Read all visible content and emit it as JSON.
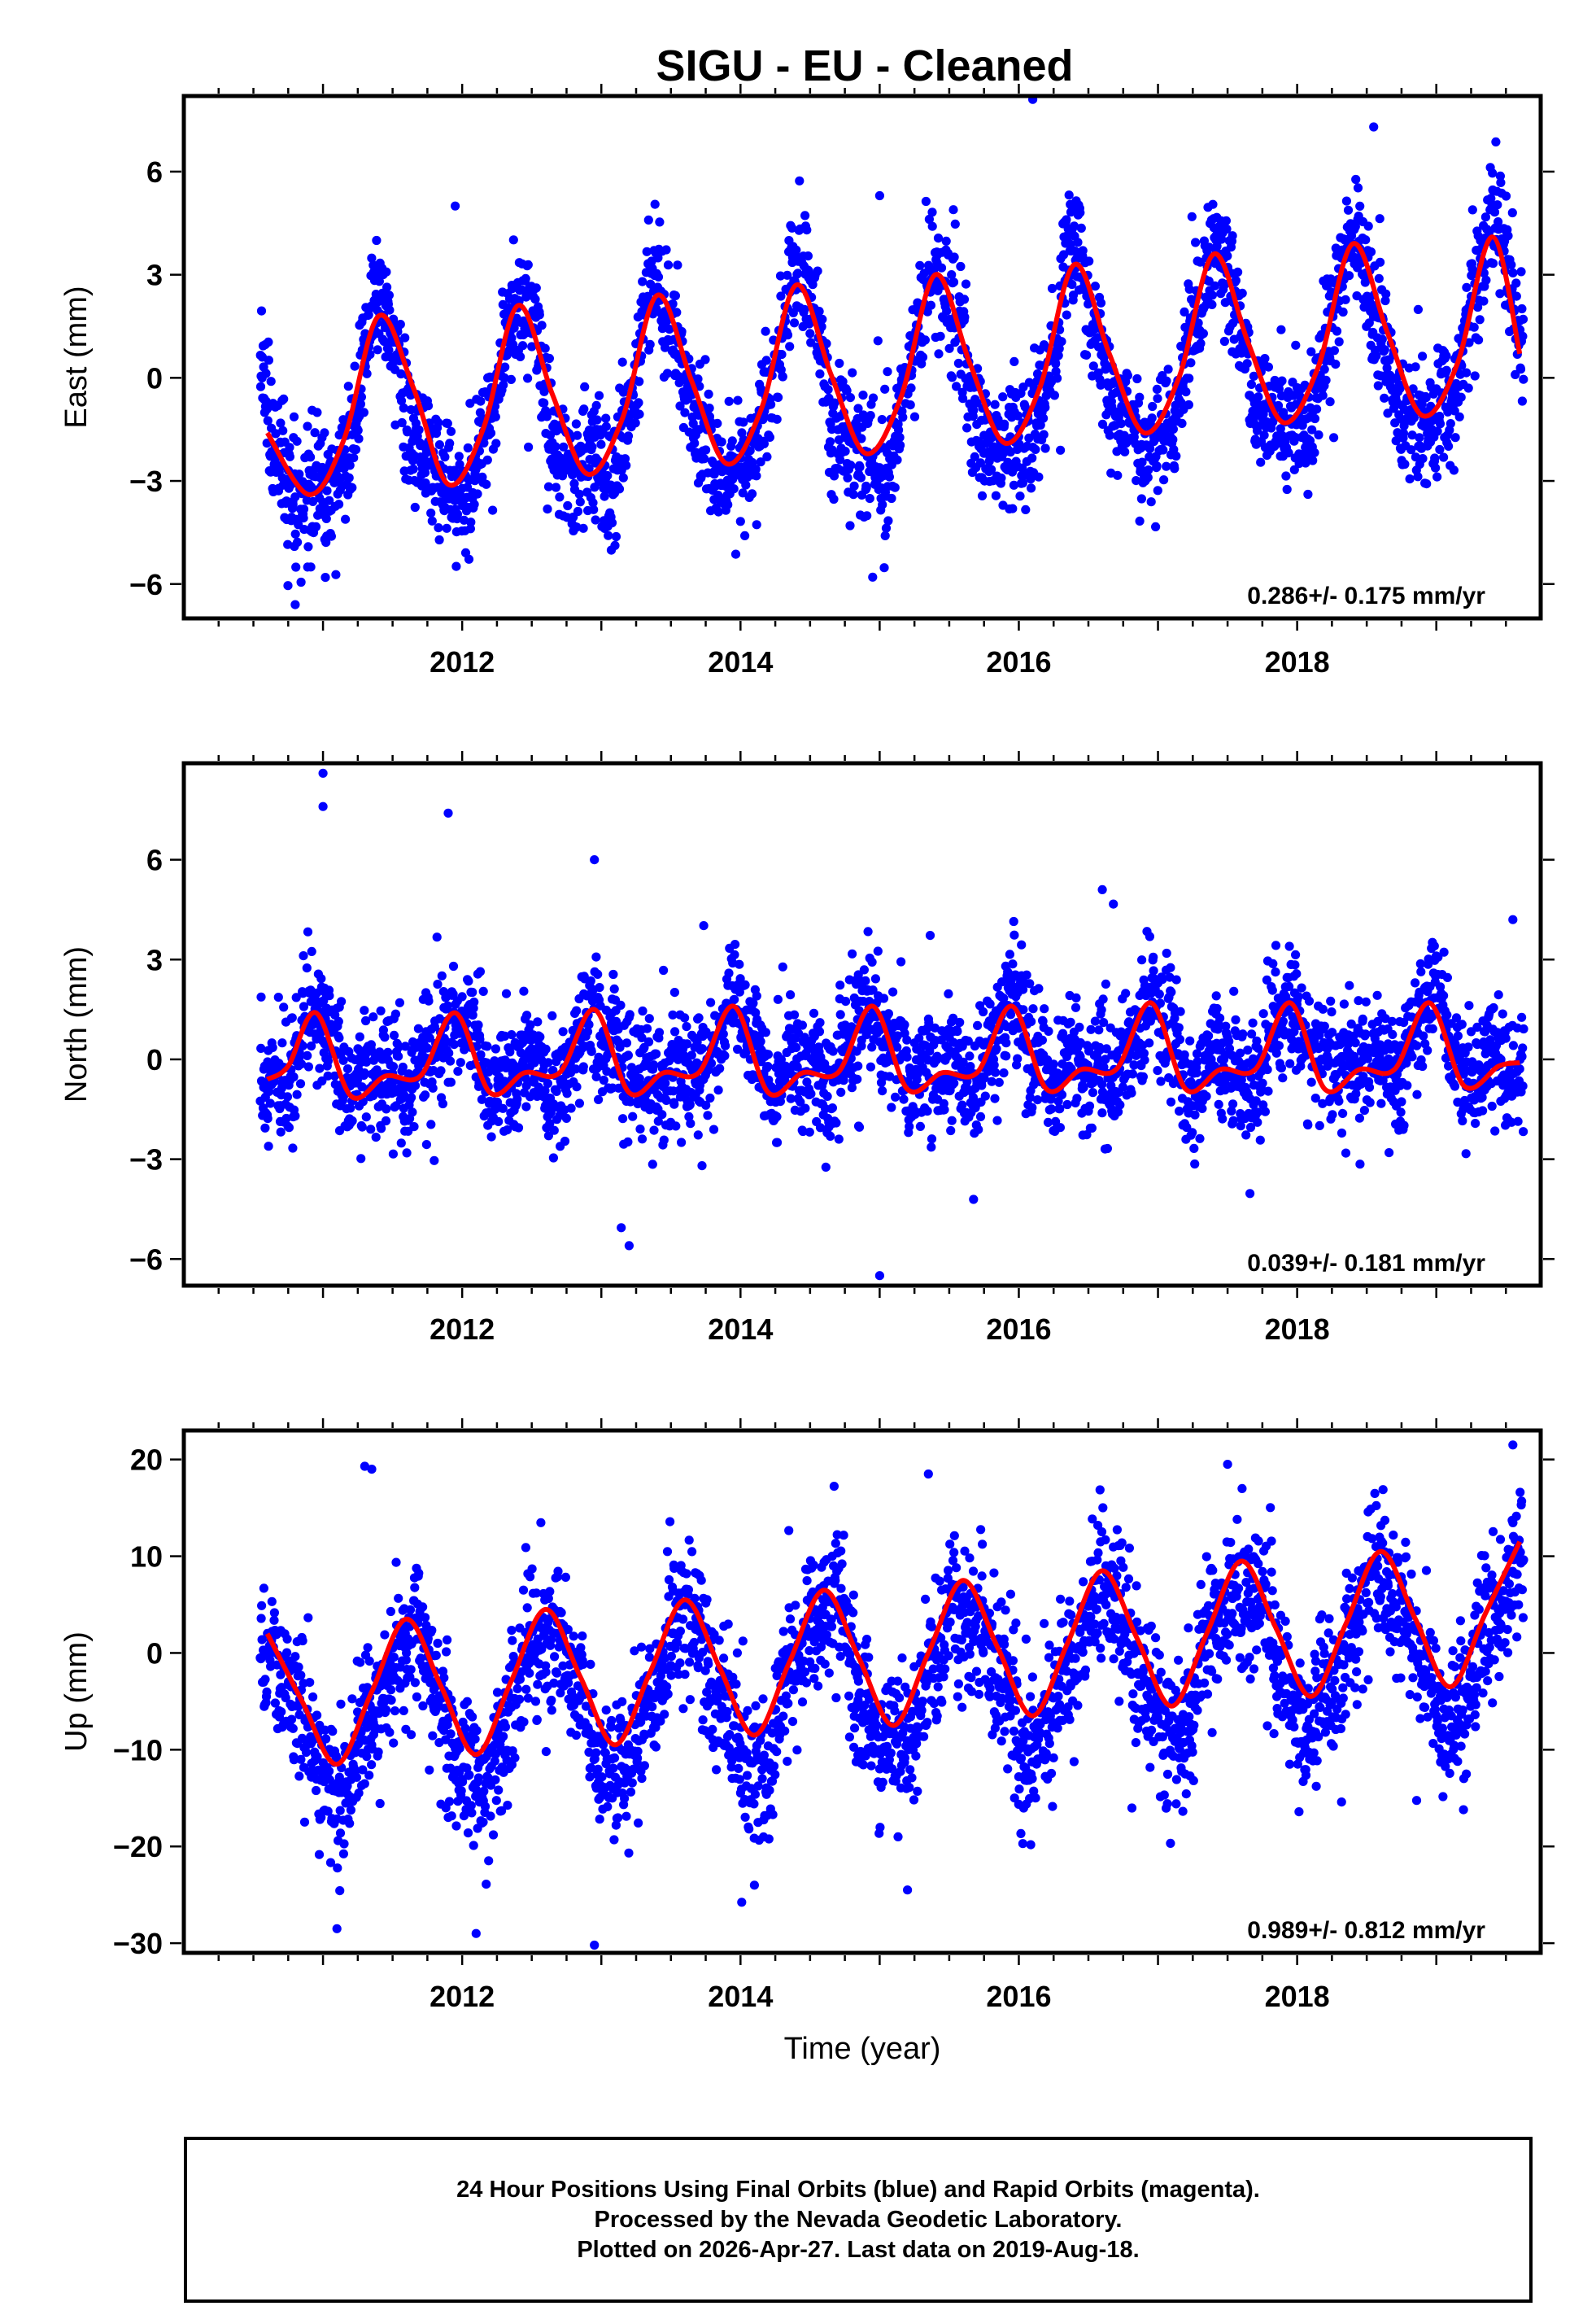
{
  "title": "SIGU  - EU - Cleaned",
  "colors": {
    "data_points": "#0000ff",
    "fit_line": "#ff0000",
    "frame": "#000000"
  },
  "footer": {
    "line1": "24 Hour Positions Using Final Orbits (blue) and Rapid Orbits (magenta).",
    "line2": "Processed by the Nevada Geodetic Laboratory.",
    "line3": "Plotted on 2026-Apr-27. Last data on 2019-Aug-18."
  },
  "chart_data": [
    {
      "type": "scatter",
      "title": "SIGU  - EU - Cleaned",
      "xlabel": "",
      "ylabel": "East (mm)",
      "xlim": [
        2010.0,
        2019.75
      ],
      "ylim": [
        -7.0,
        8.2
      ],
      "xticks": [
        2012,
        2014,
        2016,
        2018
      ],
      "xtick_labels": [
        "2012",
        "2014",
        "2016",
        "2018"
      ],
      "yticks": [
        -6,
        -3,
        0,
        3,
        6
      ],
      "ytick_labels": [
        "−6",
        "−3",
        "0",
        "3",
        "6"
      ],
      "rate_annotation": "0.286+/- 0.175 mm/yr",
      "data_start": 2010.55,
      "data_end": 2019.63,
      "series": [
        {
          "name": "24 hour positions (final orbits)",
          "color": "#0000ff",
          "model": {
            "offset": -0.3,
            "trend": 0.286,
            "annual_amplitude": 2.6,
            "annual_peak": 0.42,
            "semiannual_amplitude": 0.7,
            "semiannual_peak": 0.4,
            "scatter_sd": 1.05
          },
          "extreme_points": [
            [
              2011.95,
              5.0
            ],
            [
              2016.1,
              8.1
            ],
            [
              2015.0,
              5.3
            ],
            [
              2018.55,
              7.3
            ],
            [
              2010.8,
              -6.6
            ],
            [
              2014.95,
              -5.8
            ]
          ]
        },
        {
          "name": "Seasonal model fit",
          "color": "#ff0000",
          "x": [
            2010.6,
            2010.9,
            2011.15,
            2011.4,
            2011.65,
            2011.9,
            2012.15,
            2012.4,
            2012.65,
            2012.9,
            2013.15,
            2013.4,
            2013.65,
            2013.9,
            2014.15,
            2014.4,
            2014.65,
            2014.9,
            2015.15,
            2015.4,
            2015.65,
            2015.9,
            2016.15,
            2016.4,
            2016.65,
            2016.9,
            2017.15,
            2017.4,
            2017.65,
            2017.9,
            2018.15,
            2018.4,
            2018.65,
            2018.9,
            2019.15,
            2019.4,
            2019.6
          ],
          "y": [
            -1.6,
            -3.4,
            -1.8,
            1.8,
            -0.3,
            -3.1,
            -1.5,
            2.1,
            -0.5,
            -2.8,
            -1.2,
            2.4,
            -0.1,
            -2.5,
            -0.9,
            2.7,
            0.1,
            -2.2,
            -0.6,
            3.0,
            0.4,
            -1.9,
            -0.3,
            3.3,
            0.7,
            -1.6,
            0.0,
            3.6,
            1.0,
            -1.3,
            0.3,
            3.9,
            1.3,
            -1.1,
            0.4,
            4.1,
            0.7
          ]
        }
      ]
    },
    {
      "type": "scatter",
      "title": "",
      "xlabel": "",
      "ylabel": "North (mm)",
      "xlim": [
        2010.0,
        2019.75
      ],
      "ylim": [
        -6.8,
        8.9
      ],
      "xticks": [
        2012,
        2014,
        2016,
        2018
      ],
      "xtick_labels": [
        "2012",
        "2014",
        "2016",
        "2018"
      ],
      "yticks": [
        -6,
        -3,
        0,
        3,
        6
      ],
      "ytick_labels": [
        "−6",
        "−3",
        "0",
        "3",
        "6"
      ],
      "rate_annotation": "0.039+/- 0.181 mm/yr",
      "data_start": 2010.55,
      "data_end": 2019.63,
      "series": [
        {
          "name": "24 hour positions (final orbits)",
          "color": "#0000ff",
          "model": {
            "offset": 0.1,
            "trend": 0.039,
            "annual_amplitude": 0.8,
            "annual_peak": 0.95,
            "semiannual_amplitude": 0.6,
            "semiannual_peak": 0.45,
            "scatter_sd": 1.05
          },
          "extreme_points": [
            [
              2011.0,
              8.6
            ],
            [
              2011.0,
              7.6
            ],
            [
              2011.9,
              7.4
            ],
            [
              2012.95,
              6.0
            ],
            [
              2015.0,
              -6.5
            ],
            [
              2013.2,
              -5.6
            ],
            [
              2016.6,
              5.1
            ],
            [
              2019.55,
              4.2
            ]
          ]
        },
        {
          "name": "Seasonal model fit",
          "color": "#ff0000",
          "x": [
            2010.6,
            2010.75,
            2010.95,
            2011.2,
            2011.45,
            2011.7,
            2011.95,
            2012.2,
            2012.45,
            2012.7,
            2012.95,
            2013.2,
            2013.45,
            2013.7,
            2013.95,
            2014.2,
            2014.45,
            2014.7,
            2014.95,
            2015.2,
            2015.45,
            2015.7,
            2015.95,
            2016.2,
            2016.45,
            2016.7,
            2016.95,
            2017.2,
            2017.45,
            2017.7,
            2017.95,
            2018.2,
            2018.45,
            2018.7,
            2018.95,
            2019.2,
            2019.45,
            2019.6
          ],
          "y": [
            -0.6,
            -0.2,
            1.4,
            -1.1,
            -0.5,
            -0.5,
            1.4,
            -1.0,
            -0.4,
            -0.4,
            1.5,
            -1.0,
            -0.4,
            -0.4,
            1.6,
            -1.0,
            -0.4,
            -0.4,
            1.6,
            -0.9,
            -0.4,
            -0.4,
            1.6,
            -0.9,
            -0.3,
            -0.3,
            1.7,
            -0.9,
            -0.3,
            -0.3,
            1.7,
            -0.9,
            -0.3,
            -0.3,
            1.7,
            -0.8,
            -0.2,
            -0.1
          ]
        }
      ]
    },
    {
      "type": "scatter",
      "title": "",
      "xlabel": "Time (year)",
      "ylabel": "Up (mm)",
      "xlim": [
        2010.0,
        2019.75
      ],
      "ylim": [
        -31.0,
        23.0
      ],
      "xticks": [
        2012,
        2014,
        2016,
        2018
      ],
      "xtick_labels": [
        "2012",
        "2014",
        "2016",
        "2018"
      ],
      "yticks": [
        -30,
        -20,
        -10,
        0,
        10,
        20
      ],
      "ytick_labels": [
        "−30",
        "−20",
        "−10",
        "0",
        "10",
        "20"
      ],
      "rate_annotation": "0.989+/- 0.812 mm/yr",
      "data_start": 2010.55,
      "data_end": 2019.63,
      "series": [
        {
          "name": "24 hour positions (final orbits)",
          "color": "#0000ff",
          "model": {
            "offset": -3.0,
            "trend": 0.989,
            "annual_amplitude": 7.5,
            "annual_peak": 0.6,
            "semiannual_amplitude": 0.0,
            "semiannual_peak": 0.0,
            "scatter_sd": 4.3
          },
          "extreme_points": [
            [
              2011.35,
              19.0
            ],
            [
              2011.3,
              19.3
            ],
            [
              2015.35,
              18.5
            ],
            [
              2017.5,
              19.5
            ],
            [
              2019.55,
              21.5
            ],
            [
              2012.95,
              -30.2
            ],
            [
              2012.1,
              -29.0
            ],
            [
              2011.1,
              -28.5
            ],
            [
              2014.1,
              -24.0
            ],
            [
              2015.2,
              -24.5
            ]
          ]
        },
        {
          "name": "Seasonal model fit",
          "color": "#ff0000",
          "x": [
            2010.6,
            2010.85,
            2011.1,
            2011.35,
            2011.6,
            2011.85,
            2012.1,
            2012.35,
            2012.6,
            2012.85,
            2013.1,
            2013.35,
            2013.6,
            2013.85,
            2014.1,
            2014.35,
            2014.6,
            2014.85,
            2015.1,
            2015.35,
            2015.6,
            2015.85,
            2016.1,
            2016.35,
            2016.6,
            2016.85,
            2017.1,
            2017.35,
            2017.6,
            2017.85,
            2018.1,
            2018.35,
            2018.6,
            2018.85,
            2019.1,
            2019.35,
            2019.6
          ],
          "y": [
            2.0,
            -5.0,
            -11.5,
            -4.0,
            3.5,
            -3.5,
            -10.5,
            -3.0,
            4.5,
            -2.5,
            -9.5,
            -2.0,
            5.5,
            -1.5,
            -8.5,
            -1.0,
            6.5,
            -0.5,
            -7.5,
            0.0,
            7.5,
            0.5,
            -6.5,
            1.0,
            8.5,
            1.5,
            -5.5,
            2.0,
            9.5,
            2.5,
            -4.5,
            3.0,
            10.5,
            3.5,
            -3.5,
            4.0,
            11.5
          ]
        }
      ]
    }
  ]
}
